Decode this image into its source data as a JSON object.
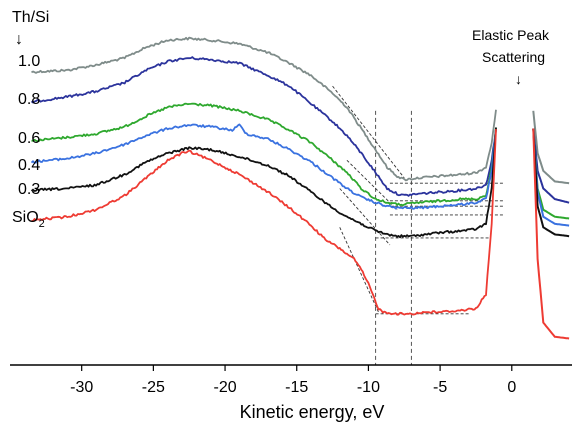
{
  "chart_data": {
    "type": "line",
    "title": "",
    "xlabel": "Kinetic energy, eV",
    "ylabel": "",
    "xlim": [
      -35,
      4.2
    ],
    "ylim": [
      0,
      1
    ],
    "xticks": [
      -30,
      -25,
      -20,
      -15,
      -10,
      -5,
      0
    ],
    "grid": false,
    "legend_header": "Th/Si",
    "legend_arrow": "↓",
    "annotation": {
      "lines": [
        "Elastic Peak",
        "Scattering"
      ],
      "arrow": "↓"
    },
    "guide_lines_x": [
      -9.5,
      -7.0
    ],
    "colors": {
      "1.0": "#7f8c8a",
      "0.8": "#2b339c",
      "0.6": "#2ea82e",
      "0.4": "#3a72e0",
      "0.3": "#111111",
      "SiO2": "#ee3b33",
      "guide": "#555555"
    },
    "series": [
      {
        "name": "1.0",
        "points": [
          [
            -33.5,
            0.83
          ],
          [
            -31,
            0.835
          ],
          [
            -29,
            0.85
          ],
          [
            -27,
            0.87
          ],
          [
            -25.5,
            0.9
          ],
          [
            -24,
            0.92
          ],
          [
            -22.5,
            0.925
          ],
          [
            -21,
            0.92
          ],
          [
            -19,
            0.91
          ],
          [
            -17,
            0.885
          ],
          [
            -15.5,
            0.855
          ],
          [
            -14,
            0.82
          ],
          [
            -12.5,
            0.77
          ],
          [
            -11.5,
            0.73
          ],
          [
            -10.5,
            0.67
          ],
          [
            -9.5,
            0.61
          ],
          [
            -8.7,
            0.56
          ],
          [
            -8,
            0.535
          ],
          [
            -7.5,
            0.525
          ],
          [
            -6.5,
            0.53
          ],
          [
            -5,
            0.535
          ],
          [
            -3.5,
            0.54
          ],
          [
            -2.5,
            0.545
          ],
          [
            -1.8,
            0.56
          ],
          [
            -1.4,
            0.63
          ],
          [
            -1.1,
            0.72
          ]
        ],
        "tail": [
          [
            1.5,
            0.72
          ],
          [
            1.8,
            0.6
          ],
          [
            2.2,
            0.55
          ],
          [
            3,
            0.52
          ],
          [
            4,
            0.515
          ]
        ]
      },
      {
        "name": "0.8",
        "points": [
          [
            -33.5,
            0.745
          ],
          [
            -31,
            0.76
          ],
          [
            -29,
            0.775
          ],
          [
            -27,
            0.8
          ],
          [
            -25.5,
            0.835
          ],
          [
            -24,
            0.86
          ],
          [
            -22.5,
            0.87
          ],
          [
            -21,
            0.865
          ],
          [
            -19,
            0.855
          ],
          [
            -17,
            0.82
          ],
          [
            -15.5,
            0.79
          ],
          [
            -14,
            0.74
          ],
          [
            -12.5,
            0.69
          ],
          [
            -11.5,
            0.65
          ],
          [
            -10.5,
            0.6
          ],
          [
            -9.5,
            0.545
          ],
          [
            -8.7,
            0.5
          ],
          [
            -8,
            0.485
          ],
          [
            -7.5,
            0.48
          ],
          [
            -6.5,
            0.485
          ],
          [
            -5,
            0.49
          ],
          [
            -3.5,
            0.495
          ],
          [
            -2.5,
            0.5
          ],
          [
            -1.8,
            0.51
          ],
          [
            -1.4,
            0.58
          ],
          [
            -1.1,
            0.67
          ]
        ],
        "tail": [
          [
            1.5,
            0.67
          ],
          [
            1.8,
            0.55
          ],
          [
            2.2,
            0.5
          ],
          [
            3,
            0.47
          ],
          [
            4,
            0.46
          ]
        ]
      },
      {
        "name": "0.6",
        "points": [
          [
            -33.5,
            0.635
          ],
          [
            -31,
            0.645
          ],
          [
            -29,
            0.655
          ],
          [
            -27,
            0.675
          ],
          [
            -25.5,
            0.705
          ],
          [
            -24,
            0.73
          ],
          [
            -22.5,
            0.74
          ],
          [
            -21,
            0.735
          ],
          [
            -19,
            0.72
          ],
          [
            -17,
            0.695
          ],
          [
            -15.5,
            0.665
          ],
          [
            -14,
            0.63
          ],
          [
            -12.5,
            0.58
          ],
          [
            -11.5,
            0.545
          ],
          [
            -10.5,
            0.5
          ],
          [
            -9.5,
            0.47
          ],
          [
            -8.7,
            0.46
          ],
          [
            -8,
            0.455
          ],
          [
            -7.5,
            0.455
          ],
          [
            -6.5,
            0.46
          ],
          [
            -5,
            0.465
          ],
          [
            -3.5,
            0.47
          ],
          [
            -2.5,
            0.47
          ],
          [
            -1.8,
            0.48
          ],
          [
            -1.4,
            0.56
          ],
          [
            -1.1,
            0.67
          ]
        ],
        "tail": [
          [
            1.5,
            0.67
          ],
          [
            1.8,
            0.5
          ],
          [
            2.2,
            0.44
          ],
          [
            3,
            0.42
          ],
          [
            4,
            0.415
          ]
        ]
      },
      {
        "name": "0.4",
        "points": [
          [
            -33.5,
            0.575
          ],
          [
            -31,
            0.585
          ],
          [
            -29,
            0.6
          ],
          [
            -27,
            0.625
          ],
          [
            -25.5,
            0.65
          ],
          [
            -24,
            0.67
          ],
          [
            -22.5,
            0.68
          ],
          [
            -21,
            0.675
          ],
          [
            -19.5,
            0.665
          ],
          [
            -19,
            0.68
          ],
          [
            -18.5,
            0.655
          ],
          [
            -17,
            0.64
          ],
          [
            -15.5,
            0.61
          ],
          [
            -14,
            0.575
          ],
          [
            -12.5,
            0.53
          ],
          [
            -11.5,
            0.5
          ],
          [
            -10.5,
            0.475
          ],
          [
            -9.5,
            0.46
          ],
          [
            -8.7,
            0.45
          ],
          [
            -8,
            0.445
          ],
          [
            -7.5,
            0.445
          ],
          [
            -6.5,
            0.445
          ],
          [
            -5,
            0.45
          ],
          [
            -3.5,
            0.455
          ],
          [
            -2.5,
            0.46
          ],
          [
            -1.8,
            0.47
          ],
          [
            -1.4,
            0.55
          ],
          [
            -1.1,
            0.67
          ]
        ],
        "tail": [
          [
            1.5,
            0.67
          ],
          [
            1.8,
            0.49
          ],
          [
            2.2,
            0.42
          ],
          [
            3,
            0.4
          ],
          [
            4,
            0.395
          ]
        ]
      },
      {
        "name": "0.3",
        "points": [
          [
            -33.5,
            0.495
          ],
          [
            -31,
            0.5
          ],
          [
            -29,
            0.51
          ],
          [
            -27,
            0.54
          ],
          [
            -25.5,
            0.575
          ],
          [
            -24,
            0.6
          ],
          [
            -23,
            0.61
          ],
          [
            -22.5,
            0.615
          ],
          [
            -21,
            0.61
          ],
          [
            -19,
            0.59
          ],
          [
            -17,
            0.565
          ],
          [
            -15.5,
            0.535
          ],
          [
            -14,
            0.49
          ],
          [
            -12.5,
            0.445
          ],
          [
            -11.5,
            0.42
          ],
          [
            -10.5,
            0.4
          ],
          [
            -9.5,
            0.38
          ],
          [
            -8.7,
            0.37
          ],
          [
            -8,
            0.365
          ],
          [
            -7,
            0.365
          ],
          [
            -6,
            0.37
          ],
          [
            -5,
            0.375
          ],
          [
            -3.5,
            0.38
          ],
          [
            -2.5,
            0.385
          ],
          [
            -1.8,
            0.4
          ],
          [
            -1.4,
            0.5
          ],
          [
            -1.1,
            0.67
          ]
        ],
        "tail": [
          [
            1.5,
            0.67
          ],
          [
            1.8,
            0.45
          ],
          [
            2.2,
            0.39
          ],
          [
            3,
            0.37
          ],
          [
            4,
            0.365
          ]
        ]
      },
      {
        "name": "SiO2",
        "label_main": "SiO",
        "label_sub": "2",
        "points": [
          [
            -33.5,
            0.41
          ],
          [
            -31,
            0.42
          ],
          [
            -29,
            0.44
          ],
          [
            -27,
            0.48
          ],
          [
            -25.5,
            0.53
          ],
          [
            -24,
            0.58
          ],
          [
            -23,
            0.6
          ],
          [
            -22.5,
            0.605
          ],
          [
            -21,
            0.58
          ],
          [
            -19,
            0.54
          ],
          [
            -17,
            0.49
          ],
          [
            -15.5,
            0.445
          ],
          [
            -14,
            0.395
          ],
          [
            -13,
            0.355
          ],
          [
            -12,
            0.33
          ],
          [
            -11,
            0.3
          ],
          [
            -10.5,
            0.27
          ],
          [
            -10,
            0.23
          ],
          [
            -9.6,
            0.19
          ],
          [
            -9.3,
            0.16
          ],
          [
            -9,
            0.15
          ],
          [
            -8,
            0.145
          ],
          [
            -7,
            0.145
          ],
          [
            -6,
            0.15
          ],
          [
            -5,
            0.15
          ],
          [
            -3.5,
            0.155
          ],
          [
            -2.5,
            0.16
          ],
          [
            -1.8,
            0.2
          ],
          [
            -1.4,
            0.4
          ],
          [
            -1.1,
            0.67
          ]
        ],
        "tail": [
          [
            1.5,
            0.67
          ],
          [
            1.8,
            0.3
          ],
          [
            2.2,
            0.12
          ],
          [
            3,
            0.08
          ],
          [
            4,
            0.075
          ]
        ]
      }
    ],
    "baselines": [
      {
        "series": "1.0",
        "x1": -8.5,
        "x2": -0.5,
        "y": 0.515
      },
      {
        "series": "0.8",
        "x1": -8.5,
        "x2": -0.5,
        "y": 0.465
      },
      {
        "series": "0.6",
        "x1": -8.5,
        "x2": -0.5,
        "y": 0.45
      },
      {
        "series": "0.4",
        "x1": -8.5,
        "x2": -0.5,
        "y": 0.425
      },
      {
        "series": "0.3",
        "x1": -9.5,
        "x2": -1.5,
        "y": 0.36
      },
      {
        "series": "SiO2",
        "x1": -9.5,
        "x2": -3,
        "y": 0.145
      }
    ],
    "slope_lines": [
      {
        "series": "1.0",
        "x1": -12.5,
        "x2": -7.5,
        "y1": 0.79,
        "y2": 0.53
      },
      {
        "series": "0.6",
        "x1": -11.5,
        "x2": -8,
        "y1": 0.58,
        "y2": 0.44
      },
      {
        "series": "0.3",
        "x1": -12,
        "x2": -8.5,
        "y1": 0.5,
        "y2": 0.34
      },
      {
        "series": "SiO2",
        "x1": -12,
        "x2": -9.3,
        "y1": 0.39,
        "y2": 0.15
      }
    ]
  }
}
